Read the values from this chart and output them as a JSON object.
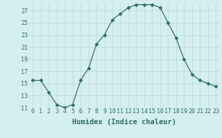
{
  "x": [
    0,
    1,
    2,
    3,
    4,
    5,
    6,
    7,
    8,
    9,
    10,
    11,
    12,
    13,
    14,
    15,
    16,
    17,
    18,
    19,
    20,
    21,
    22,
    23
  ],
  "y": [
    15.5,
    15.5,
    13.5,
    11.5,
    11.0,
    11.5,
    15.5,
    17.5,
    21.5,
    23.0,
    25.5,
    26.5,
    27.5,
    28.0,
    28.0,
    28.0,
    27.5,
    25.0,
    22.5,
    19.0,
    16.5,
    15.5,
    15.0,
    14.5
  ],
  "xlabel": "Humidex (Indice chaleur)",
  "ylim": [
    11,
    28
  ],
  "xlim": [
    -0.5,
    23.5
  ],
  "yticks": [
    11,
    13,
    15,
    17,
    19,
    21,
    23,
    25,
    27
  ],
  "xtick_labels": [
    "0",
    "1",
    "2",
    "3",
    "4",
    "5",
    "6",
    "7",
    "8",
    "9",
    "10",
    "11",
    "12",
    "13",
    "14",
    "15",
    "16",
    "17",
    "18",
    "19",
    "20",
    "21",
    "22",
    "23"
  ],
  "line_color": "#2d6e63",
  "marker": "D",
  "marker_size": 2.5,
  "bg_color": "#d5eeee",
  "grid_color": "#b8d8d8",
  "tick_color": "#2d6e63",
  "xlabel_fontsize": 7.5,
  "tick_fontsize": 6.0
}
